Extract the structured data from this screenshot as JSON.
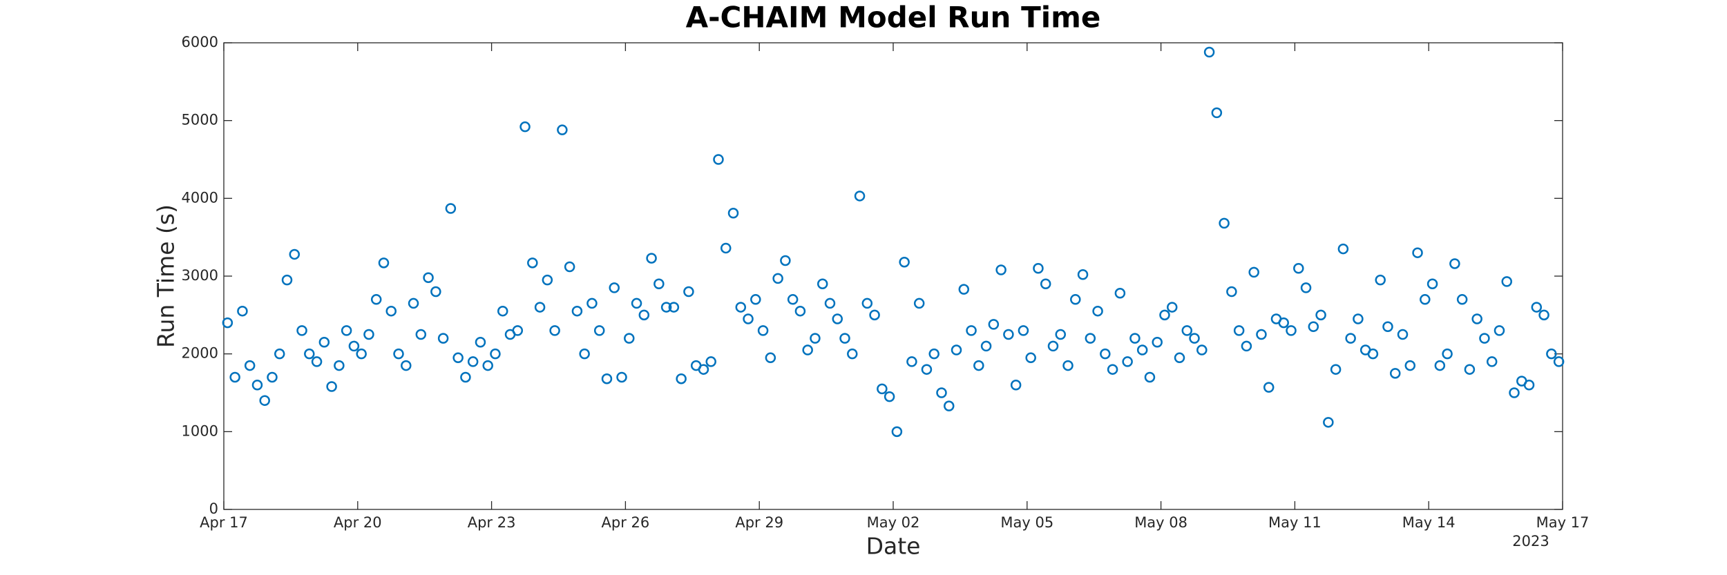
{
  "chart_data": {
    "type": "scatter",
    "title": "A-CHAIM Model Run Time",
    "xlabel": "Date",
    "ylabel": "Run Time (s)",
    "x_axis_year_label": "2023",
    "color": "#0072BD",
    "xlim": [
      "2023-04-17",
      "2023-05-17"
    ],
    "xticks": [
      {
        "value": "2023-04-17",
        "label": "Apr 17"
      },
      {
        "value": "2023-04-20",
        "label": "Apr 20"
      },
      {
        "value": "2023-04-23",
        "label": "Apr 23"
      },
      {
        "value": "2023-04-26",
        "label": "Apr 26"
      },
      {
        "value": "2023-04-29",
        "label": "Apr 29"
      },
      {
        "value": "2023-05-02",
        "label": "May 02"
      },
      {
        "value": "2023-05-05",
        "label": "May 05"
      },
      {
        "value": "2023-05-08",
        "label": "May 08"
      },
      {
        "value": "2023-05-11",
        "label": "May 11"
      },
      {
        "value": "2023-05-14",
        "label": "May 14"
      },
      {
        "value": "2023-05-17",
        "label": "May 17"
      }
    ],
    "ylim": [
      0,
      6000
    ],
    "yticks": [
      0,
      1000,
      2000,
      3000,
      4000,
      5000,
      6000
    ],
    "x": [
      "2023-04-17T02:00",
      "2023-04-17T06:00",
      "2023-04-17T10:00",
      "2023-04-17T14:00",
      "2023-04-17T18:00",
      "2023-04-17T22:00",
      "2023-04-18T02:00",
      "2023-04-18T06:00",
      "2023-04-18T10:00",
      "2023-04-18T14:00",
      "2023-04-18T18:00",
      "2023-04-18T22:00",
      "2023-04-19T02:00",
      "2023-04-19T06:00",
      "2023-04-19T10:00",
      "2023-04-19T14:00",
      "2023-04-19T18:00",
      "2023-04-19T22:00",
      "2023-04-20T02:00",
      "2023-04-20T06:00",
      "2023-04-20T10:00",
      "2023-04-20T14:00",
      "2023-04-20T18:00",
      "2023-04-20T22:00",
      "2023-04-21T02:00",
      "2023-04-21T06:00",
      "2023-04-21T10:00",
      "2023-04-21T14:00",
      "2023-04-21T18:00",
      "2023-04-21T22:00",
      "2023-04-22T02:00",
      "2023-04-22T06:00",
      "2023-04-22T10:00",
      "2023-04-22T14:00",
      "2023-04-22T18:00",
      "2023-04-22T22:00",
      "2023-04-23T02:00",
      "2023-04-23T06:00",
      "2023-04-23T10:00",
      "2023-04-23T14:00",
      "2023-04-23T18:00",
      "2023-04-23T22:00",
      "2023-04-24T02:00",
      "2023-04-24T06:00",
      "2023-04-24T10:00",
      "2023-04-24T14:00",
      "2023-04-24T18:00",
      "2023-04-24T22:00",
      "2023-04-25T02:00",
      "2023-04-25T06:00",
      "2023-04-25T10:00",
      "2023-04-25T14:00",
      "2023-04-25T18:00",
      "2023-04-25T22:00",
      "2023-04-26T02:00",
      "2023-04-26T06:00",
      "2023-04-26T10:00",
      "2023-04-26T14:00",
      "2023-04-26T18:00",
      "2023-04-26T22:00",
      "2023-04-27T02:00",
      "2023-04-27T06:00",
      "2023-04-27T10:00",
      "2023-04-27T14:00",
      "2023-04-27T18:00",
      "2023-04-27T22:00",
      "2023-04-28T02:00",
      "2023-04-28T06:00",
      "2023-04-28T10:00",
      "2023-04-28T14:00",
      "2023-04-28T18:00",
      "2023-04-28T22:00",
      "2023-04-29T02:00",
      "2023-04-29T06:00",
      "2023-04-29T10:00",
      "2023-04-29T14:00",
      "2023-04-29T18:00",
      "2023-04-29T22:00",
      "2023-04-30T02:00",
      "2023-04-30T06:00",
      "2023-04-30T10:00",
      "2023-04-30T14:00",
      "2023-04-30T18:00",
      "2023-04-30T22:00",
      "2023-05-01T02:00",
      "2023-05-01T06:00",
      "2023-05-01T10:00",
      "2023-05-01T14:00",
      "2023-05-01T18:00",
      "2023-05-01T22:00",
      "2023-05-02T02:00",
      "2023-05-02T06:00",
      "2023-05-02T10:00",
      "2023-05-02T14:00",
      "2023-05-02T18:00",
      "2023-05-02T22:00",
      "2023-05-03T02:00",
      "2023-05-03T06:00",
      "2023-05-03T10:00",
      "2023-05-03T14:00",
      "2023-05-03T18:00",
      "2023-05-03T22:00",
      "2023-05-04T02:00",
      "2023-05-04T06:00",
      "2023-05-04T10:00",
      "2023-05-04T14:00",
      "2023-05-04T18:00",
      "2023-05-04T22:00",
      "2023-05-05T02:00",
      "2023-05-05T06:00",
      "2023-05-05T10:00",
      "2023-05-05T14:00",
      "2023-05-05T18:00",
      "2023-05-05T22:00",
      "2023-05-06T02:00",
      "2023-05-06T06:00",
      "2023-05-06T10:00",
      "2023-05-06T14:00",
      "2023-05-06T18:00",
      "2023-05-06T22:00",
      "2023-05-07T02:00",
      "2023-05-07T06:00",
      "2023-05-07T10:00",
      "2023-05-07T14:00",
      "2023-05-07T18:00",
      "2023-05-07T22:00",
      "2023-05-08T02:00",
      "2023-05-08T06:00",
      "2023-05-08T10:00",
      "2023-05-08T14:00",
      "2023-05-08T18:00",
      "2023-05-08T22:00",
      "2023-05-09T02:00",
      "2023-05-09T06:00",
      "2023-05-09T10:00",
      "2023-05-09T14:00",
      "2023-05-09T18:00",
      "2023-05-09T22:00",
      "2023-05-10T02:00",
      "2023-05-10T06:00",
      "2023-05-10T10:00",
      "2023-05-10T14:00",
      "2023-05-10T18:00",
      "2023-05-10T22:00",
      "2023-05-11T02:00",
      "2023-05-11T06:00",
      "2023-05-11T10:00",
      "2023-05-11T14:00",
      "2023-05-11T18:00",
      "2023-05-11T22:00",
      "2023-05-12T02:00",
      "2023-05-12T06:00",
      "2023-05-12T10:00",
      "2023-05-12T14:00",
      "2023-05-12T18:00",
      "2023-05-12T22:00",
      "2023-05-13T02:00",
      "2023-05-13T06:00",
      "2023-05-13T10:00",
      "2023-05-13T14:00",
      "2023-05-13T18:00",
      "2023-05-13T22:00",
      "2023-05-14T02:00",
      "2023-05-14T06:00",
      "2023-05-14T10:00",
      "2023-05-14T14:00",
      "2023-05-14T18:00",
      "2023-05-14T22:00",
      "2023-05-15T02:00",
      "2023-05-15T06:00",
      "2023-05-15T10:00",
      "2023-05-15T14:00",
      "2023-05-15T18:00",
      "2023-05-15T22:00",
      "2023-05-16T02:00",
      "2023-05-16T06:00",
      "2023-05-16T10:00",
      "2023-05-16T14:00",
      "2023-05-16T18:00",
      "2023-05-16T22:00"
    ],
    "values": [
      2400,
      1700,
      2550,
      1850,
      1600,
      1400,
      1700,
      2000,
      2950,
      3280,
      2300,
      2000,
      1900,
      2150,
      1580,
      1850,
      2300,
      2100,
      2000,
      2250,
      2700,
      3170,
      2550,
      2000,
      1850,
      2650,
      2250,
      2980,
      2800,
      2200,
      3870,
      1950,
      1700,
      1900,
      2150,
      1850,
      2000,
      2550,
      2250,
      2300,
      4920,
      3170,
      2600,
      2950,
      2300,
      4880,
      3120,
      2550,
      2000,
      2650,
      2300,
      1680,
      2850,
      1700,
      2200,
      2650,
      2500,
      3230,
      2900,
      2600,
      2600,
      1680,
      2800,
      1850,
      1800,
      1900,
      4500,
      3360,
      3810,
      2600,
      2450,
      2700,
      2300,
      1950,
      2970,
      3200,
      2700,
      2550,
      2050,
      2200,
      2900,
      2650,
      2450,
      2200,
      2000,
      4030,
      2650,
      2500,
      1550,
      1450,
      1000,
      3180,
      1900,
      2650,
      1800,
      2000,
      1500,
      1330,
      2050,
      2830,
      2300,
      1850,
      2100,
      2380,
      3080,
      2250,
      1600,
      2300,
      1950,
      3100,
      2900,
      2100,
      2250,
      1850,
      2700,
      3020,
      2200,
      2550,
      2000,
      1800,
      2780,
      1900,
      2200,
      2050,
      1700,
      2150,
      2500,
      2600,
      1950,
      2300,
      2200,
      2050,
      5880,
      5100,
      3680,
      2800,
      2300,
      2100,
      3050,
      2250,
      1570,
      2450,
      2400,
      2300,
      3100,
      2850,
      2350,
      2500,
      1120,
      1800,
      3350,
      2200,
      2450,
      2050,
      2000,
      2950,
      2350,
      1750,
      2250,
      1850,
      3300,
      2700,
      2900,
      1850,
      2000,
      3160,
      2700,
      1800,
      2450,
      2200,
      1900,
      2300,
      2930,
      1500,
      1650,
      1600,
      2600,
      2500,
      2000,
      1900
    ]
  }
}
